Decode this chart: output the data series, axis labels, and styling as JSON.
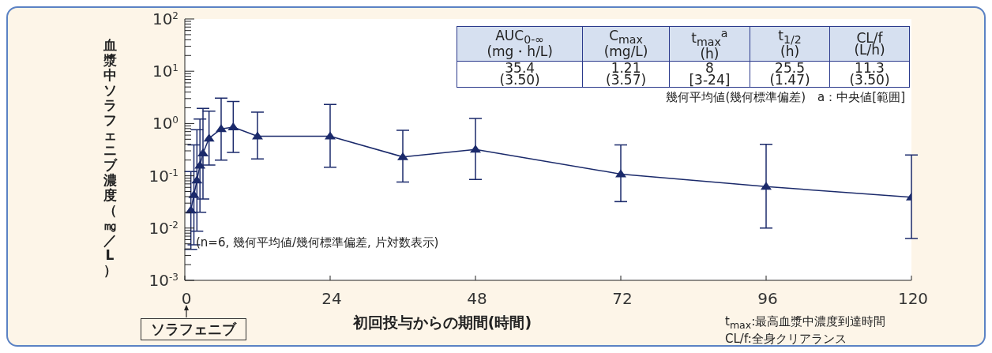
{
  "chart_data": {
    "type": "line",
    "xlabel": "初回投与からの期間(時間)",
    "ylabel": "血漿中ソラフェニブ濃度（㎎／L）",
    "x": [
      1,
      1.5,
      2,
      2.5,
      3,
      4,
      6,
      8,
      12,
      24,
      36,
      48,
      72,
      96,
      120
    ],
    "series": [
      {
        "color": "#1b2a6b",
        "values": [
          0.022,
          0.043,
          0.082,
          0.158,
          0.27,
          0.52,
          0.79,
          0.85,
          0.57,
          0.57,
          0.23,
          0.32,
          0.108,
          0.062,
          0.039
        ],
        "errors": [
          [
            0.0039,
            0.12
          ],
          [
            0.0048,
            0.39
          ],
          [
            0.0087,
            0.76
          ],
          [
            0.02,
            1.22
          ],
          [
            0.036,
            1.94
          ],
          [
            0.16,
            1.73
          ],
          [
            0.2,
            3.05
          ],
          [
            0.28,
            2.65
          ],
          [
            0.21,
            1.65
          ],
          [
            0.146,
            2.31
          ],
          [
            0.076,
            0.74
          ],
          [
            0.085,
            1.25
          ],
          [
            0.032,
            0.39
          ],
          [
            0.01,
            0.4
          ],
          [
            0.0063,
            0.25
          ]
        ]
      }
    ],
    "log": "y",
    "marker": "triangle",
    "line_style": "solid",
    "xlim": [
      0,
      120
    ],
    "xticks": [
      0,
      24,
      48,
      72,
      96,
      120
    ],
    "ylim": [
      0.001,
      100
    ],
    "yticks": [
      {
        "value": 0.001,
        "label": "10$^{-3}$"
      },
      {
        "value": 0.002,
        "label": null
      },
      {
        "value": 0.003,
        "label": null
      },
      {
        "value": 0.004,
        "label": null
      },
      {
        "value": 0.005,
        "label": null
      },
      {
        "value": 0.006,
        "label": null
      },
      {
        "value": 0.007,
        "label": null
      },
      {
        "value": 0.008,
        "label": null
      },
      {
        "value": 0.009,
        "label": null
      },
      {
        "value": 0.01,
        "label": "10$^{-2}$"
      },
      {
        "value": 0.02,
        "label": null
      },
      {
        "value": 0.03,
        "label": null
      },
      {
        "value": 0.04,
        "label": null
      },
      {
        "value": 0.05,
        "label": null
      },
      {
        "value": 0.06,
        "label": null
      },
      {
        "value": 0.07,
        "label": null
      },
      {
        "value": 0.08,
        "label": null
      },
      {
        "value": 0.09,
        "label": null
      },
      {
        "value": 0.1,
        "label": "10$^{-1}$"
      },
      {
        "value": 0.2,
        "label": null
      },
      {
        "value": 0.3,
        "label": null
      },
      {
        "value": 0.4,
        "label": null
      },
      {
        "value": 0.5,
        "label": null
      },
      {
        "value": 0.6,
        "label": null
      },
      {
        "value": 0.7,
        "label": null
      },
      {
        "value": 0.8,
        "label": null
      },
      {
        "value": 0.9,
        "label": null
      },
      {
        "value": 1,
        "label": "10$^{0}$"
      },
      {
        "value": 2,
        "label": null
      },
      {
        "value": 3,
        "label": null
      },
      {
        "value": 4,
        "label": null
      },
      {
        "value": 5,
        "label": null
      },
      {
        "value": 6,
        "label": null
      },
      {
        "value": 7,
        "label": null
      },
      {
        "value": 8,
        "label": null
      },
      {
        "value": 9,
        "label": null
      },
      {
        "value": 10,
        "label": "10$^{1}$"
      },
      {
        "value": 20,
        "label": null
      },
      {
        "value": 30,
        "label": null
      },
      {
        "value": 40,
        "label": null
      },
      {
        "value": 50,
        "label": null
      },
      {
        "value": 60,
        "label": null
      },
      {
        "value": 70,
        "label": null
      },
      {
        "value": 80,
        "label": null
      },
      {
        "value": 90,
        "label": null
      },
      {
        "value": 100,
        "label": "10$^{2}$"
      }
    ],
    "annotations": [
      "AUC$_{0-∞}$\n(mg・h/L)",
      "C$_{max}$\n(mg/L)",
      "t$_{max}$$^{a}$\n(h)",
      "t$_{1/2}$\n(h)",
      "CL/f\n(L/h)",
      "35.4\n(3.50)",
      "1.21\n(3.57)",
      "8\n[3-24]",
      "25.5\n(1.47)",
      "11.3\n(3.50)",
      "幾何平均値(幾何標準偏差)　a：中央値[範囲]",
      "(n=6, 幾何平均値/幾何標準偏差, 片対数表示)",
      "ソラフェニブ",
      "t$_{max}$:最高血漿中濃度到達時間",
      "CL/f:全身クリアランス"
    ]
  }
}
